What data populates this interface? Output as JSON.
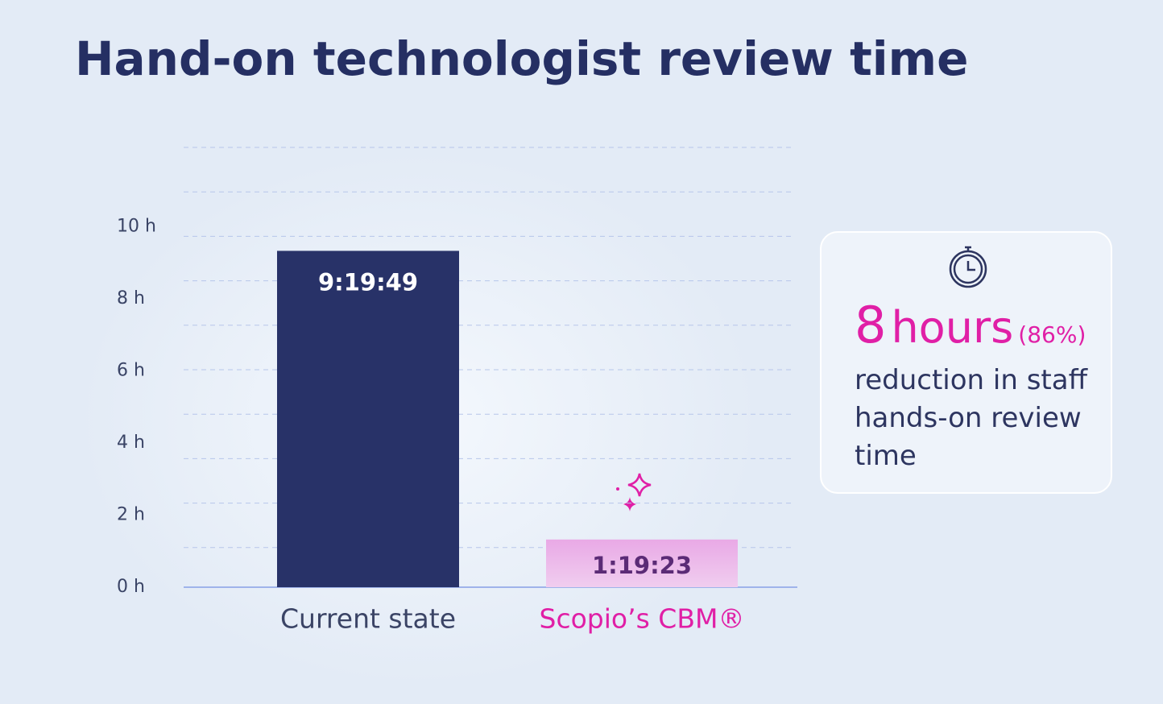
{
  "chart_data": {
    "type": "bar",
    "title": "Hand-on technologist review time",
    "categories": [
      "Current state",
      "Scopio’s CBM®"
    ],
    "values": [
      9.3303,
      1.3231
    ],
    "value_labels": [
      "9:19:49",
      "1:19:23"
    ],
    "colors": [
      "#283268",
      "#ecb7e8"
    ],
    "label_colors": [
      "#ffffff",
      "#5b2b76"
    ],
    "category_colors": [
      "#3b4466",
      "#e01fa6"
    ],
    "ylim": [
      0,
      12.2
    ],
    "yticks": [
      {
        "value": 0,
        "label": "0 h"
      },
      {
        "value": 2,
        "label": "2 h"
      },
      {
        "value": 4,
        "label": "4 h"
      },
      {
        "value": 6,
        "label": "6 h"
      },
      {
        "value": 8,
        "label": "8 h"
      },
      {
        "value": 10,
        "label": "10 h"
      }
    ],
    "annotation": {
      "value": 8,
      "unit": "hours",
      "percent": "(86%)",
      "text": "reduction in staff hands-on review time"
    }
  }
}
